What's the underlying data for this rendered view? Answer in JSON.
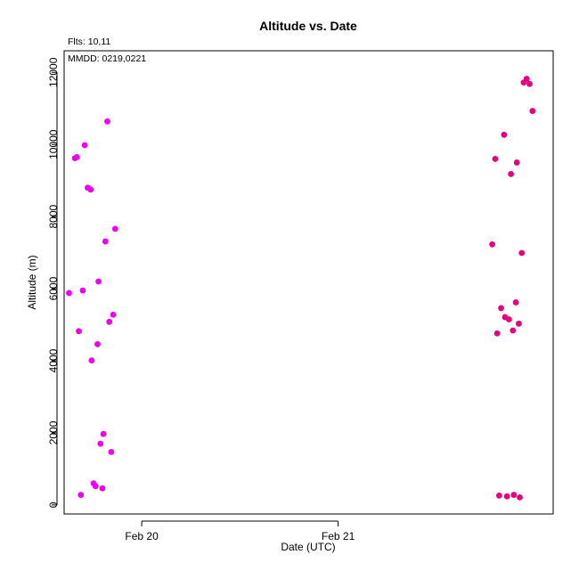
{
  "chart_data": {
    "type": "scatter",
    "title": "Altitude  vs. Date",
    "xlabel": "Date (UTC)",
    "ylabel": "Altitude (m)",
    "flights_note": "Flts: 10,11",
    "mmdd_note": "MMDD: 0219,0221",
    "x_ticks": [
      {
        "label": "Feb 20",
        "value": 1.0
      },
      {
        "label": "Feb 21",
        "value": 2.0
      }
    ],
    "y_ticks": [
      0,
      2000,
      4000,
      6000,
      8000,
      10000,
      12000
    ],
    "xlim": [
      0.605,
      3.095
    ],
    "ylim": [
      -250,
      12600
    ],
    "grid": false,
    "series": [
      {
        "color": "#ee00ee",
        "points": [
          [
            0.63,
            5880
          ],
          [
            0.66,
            9620
          ],
          [
            0.67,
            9650
          ],
          [
            0.68,
            4820
          ],
          [
            0.69,
            280
          ],
          [
            0.7,
            5950
          ],
          [
            0.71,
            9980
          ],
          [
            0.725,
            8800
          ],
          [
            0.74,
            8750
          ],
          [
            0.745,
            4010
          ],
          [
            0.755,
            600
          ],
          [
            0.765,
            520
          ],
          [
            0.775,
            4460
          ],
          [
            0.78,
            6200
          ],
          [
            0.79,
            1700
          ],
          [
            0.8,
            460
          ],
          [
            0.805,
            1970
          ],
          [
            0.815,
            7310
          ],
          [
            0.825,
            10640
          ],
          [
            0.835,
            5080
          ],
          [
            0.845,
            1470
          ],
          [
            0.855,
            5280
          ],
          [
            0.865,
            7660
          ]
        ]
      },
      {
        "color": "#e6007e",
        "points": [
          [
            2.785,
            7230
          ],
          [
            2.8,
            9600
          ],
          [
            2.81,
            4760
          ],
          [
            2.82,
            260
          ],
          [
            2.83,
            5460
          ],
          [
            2.845,
            10270
          ],
          [
            2.85,
            5210
          ],
          [
            2.86,
            240
          ],
          [
            2.87,
            5150
          ],
          [
            2.88,
            9180
          ],
          [
            2.89,
            4840
          ],
          [
            2.895,
            280
          ],
          [
            2.905,
            5620
          ],
          [
            2.91,
            9500
          ],
          [
            2.92,
            5030
          ],
          [
            2.925,
            210
          ],
          [
            2.935,
            6990
          ],
          [
            2.945,
            11720
          ],
          [
            2.96,
            11820
          ],
          [
            2.975,
            11680
          ],
          [
            2.99,
            10930
          ]
        ]
      }
    ]
  }
}
